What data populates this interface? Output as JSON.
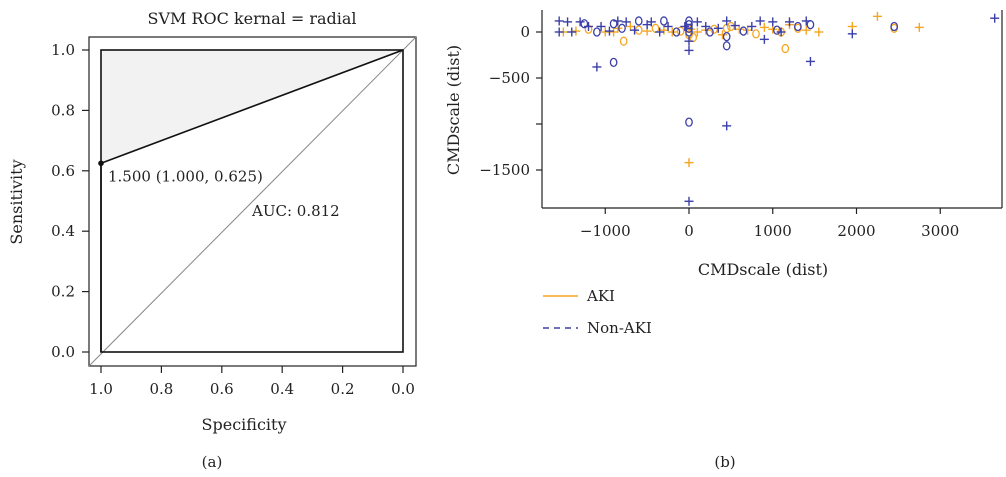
{
  "chart_data": [
    {
      "type": "line",
      "panel_label": "(a)",
      "title": "SVM ROC kernal = radial",
      "xlabel": "Specificity",
      "ylabel": "Sensitivity",
      "xlim": [
        1.0,
        0.0
      ],
      "ylim": [
        0.0,
        1.0
      ],
      "x_ticks": [
        1.0,
        0.8,
        0.6,
        0.4,
        0.2,
        0.0
      ],
      "x_tick_labels": [
        "1.0",
        "0.8",
        "0.6",
        "0.4",
        "0.2",
        "0.0"
      ],
      "y_ticks": [
        0.0,
        0.2,
        0.4,
        0.6,
        0.8,
        1.0
      ],
      "y_tick_labels": [
        "0.0",
        "0.2",
        "0.4",
        "0.6",
        "0.8",
        "1.0"
      ],
      "roc_curve": {
        "specificity": [
          1.0,
          1.0,
          0.0
        ],
        "sensitivity": [
          0.0,
          0.625,
          1.0
        ]
      },
      "threshold_point": {
        "specificity": 1.0,
        "sensitivity": 0.625,
        "label": "1.500 (1.000, 0.625)"
      },
      "auc_label": "AUC: 0.812",
      "colors": {
        "curve": "#111111",
        "diagonal": "#888888",
        "shade": "#f2f2f2"
      }
    },
    {
      "type": "scatter",
      "panel_label": "(b)",
      "xlabel": "CMDscale (dist)",
      "ylabel": "CMDscale (dist)",
      "xlim": [
        -1700,
        3800
      ],
      "ylim": [
        -1950,
        250
      ],
      "x_ticks": [
        -1000,
        0,
        1000,
        2000,
        3000
      ],
      "x_tick_labels": [
        "−1000",
        "0",
        "1000",
        "2000",
        "3000"
      ],
      "y_ticks": [
        0,
        -500,
        -1000,
        -1500
      ],
      "y_tick_labels": [
        "0",
        "−500",
        "",
        "−1500"
      ],
      "legend": [
        {
          "name": "AKI",
          "color": "#f5a623",
          "dash": "solid"
        },
        {
          "name": "Non-AKI",
          "color": "#3b3fa8",
          "dash": "dashed"
        }
      ],
      "legend_position": "bottom-left",
      "series": [
        {
          "name": "AKI",
          "color": "#f5a623",
          "points": [
            {
              "x": -1500,
              "y": 0,
              "m": "+"
            },
            {
              "x": -1350,
              "y": 10,
              "m": "+"
            },
            {
              "x": -1200,
              "y": 30,
              "m": "o"
            },
            {
              "x": -1000,
              "y": 0,
              "m": "+"
            },
            {
              "x": -850,
              "y": 40,
              "m": "+"
            },
            {
              "x": -780,
              "y": -100,
              "m": "o"
            },
            {
              "x": -700,
              "y": 60,
              "m": "+"
            },
            {
              "x": -600,
              "y": 20,
              "m": "o"
            },
            {
              "x": -500,
              "y": 10,
              "m": "+"
            },
            {
              "x": -400,
              "y": 40,
              "m": "o"
            },
            {
              "x": -300,
              "y": 20,
              "m": "+"
            },
            {
              "x": -200,
              "y": 0,
              "m": "+"
            },
            {
              "x": -100,
              "y": 10,
              "m": "o"
            },
            {
              "x": 0,
              "y": -30,
              "m": "o"
            },
            {
              "x": 20,
              "y": 30,
              "m": "+"
            },
            {
              "x": 50,
              "y": -60,
              "m": "o"
            },
            {
              "x": 100,
              "y": 0,
              "m": "+"
            },
            {
              "x": 200,
              "y": 20,
              "m": "+"
            },
            {
              "x": 300,
              "y": 30,
              "m": "o"
            },
            {
              "x": 400,
              "y": -30,
              "m": "+"
            },
            {
              "x": 500,
              "y": 60,
              "m": "o"
            },
            {
              "x": 600,
              "y": 30,
              "m": "+"
            },
            {
              "x": 700,
              "y": 20,
              "m": "+"
            },
            {
              "x": 800,
              "y": -20,
              "m": "o"
            },
            {
              "x": 900,
              "y": 50,
              "m": "+"
            },
            {
              "x": 1000,
              "y": 30,
              "m": "+"
            },
            {
              "x": 1100,
              "y": 0,
              "m": "o"
            },
            {
              "x": 1150,
              "y": -180,
              "m": "o"
            },
            {
              "x": 1200,
              "y": 80,
              "m": "+"
            },
            {
              "x": 1300,
              "y": 40,
              "m": "o"
            },
            {
              "x": 1400,
              "y": 20,
              "m": "+"
            },
            {
              "x": 1550,
              "y": 0,
              "m": "+"
            },
            {
              "x": 1950,
              "y": 60,
              "m": "+"
            },
            {
              "x": 2250,
              "y": 170,
              "m": "+"
            },
            {
              "x": 2450,
              "y": 40,
              "m": "o"
            },
            {
              "x": 2750,
              "y": 50,
              "m": "+"
            },
            {
              "x": 0,
              "y": -1420,
              "m": "+"
            },
            {
              "x": 450,
              "y": 40,
              "m": "o"
            },
            {
              "x": -900,
              "y": 0,
              "m": "+"
            }
          ]
        },
        {
          "name": "Non-AKI",
          "color": "#3b3fa8",
          "points": [
            {
              "x": -1550,
              "y": 120,
              "m": "+"
            },
            {
              "x": -1550,
              "y": 0,
              "m": "+"
            },
            {
              "x": -1450,
              "y": 110,
              "m": "+"
            },
            {
              "x": -1400,
              "y": 0,
              "m": "+"
            },
            {
              "x": -1300,
              "y": 110,
              "m": "+"
            },
            {
              "x": -1250,
              "y": 90,
              "m": "o"
            },
            {
              "x": -1200,
              "y": 60,
              "m": "+"
            },
            {
              "x": -1100,
              "y": 0,
              "m": "o"
            },
            {
              "x": -1050,
              "y": 60,
              "m": "+"
            },
            {
              "x": -950,
              "y": 10,
              "m": "+"
            },
            {
              "x": -900,
              "y": 90,
              "m": "o"
            },
            {
              "x": -850,
              "y": 120,
              "m": "+"
            },
            {
              "x": -800,
              "y": 40,
              "m": "o"
            },
            {
              "x": -750,
              "y": 110,
              "m": "+"
            },
            {
              "x": -650,
              "y": 20,
              "m": "+"
            },
            {
              "x": -600,
              "y": 120,
              "m": "o"
            },
            {
              "x": -500,
              "y": 80,
              "m": "+"
            },
            {
              "x": -450,
              "y": 110,
              "m": "+"
            },
            {
              "x": -350,
              "y": 0,
              "m": "+"
            },
            {
              "x": -300,
              "y": 120,
              "m": "o"
            },
            {
              "x": -250,
              "y": 60,
              "m": "+"
            },
            {
              "x": -150,
              "y": 0,
              "m": "o"
            },
            {
              "x": -50,
              "y": 60,
              "m": "+"
            },
            {
              "x": 0,
              "y": 120,
              "m": "o"
            },
            {
              "x": 0,
              "y": 80,
              "m": "o"
            },
            {
              "x": 0,
              "y": 40,
              "m": "o"
            },
            {
              "x": 0,
              "y": 0,
              "m": "o"
            },
            {
              "x": 0,
              "y": -100,
              "m": "+"
            },
            {
              "x": 0,
              "y": -200,
              "m": "+"
            },
            {
              "x": 100,
              "y": 110,
              "m": "+"
            },
            {
              "x": 200,
              "y": 60,
              "m": "+"
            },
            {
              "x": 250,
              "y": 0,
              "m": "o"
            },
            {
              "x": 350,
              "y": 40,
              "m": "+"
            },
            {
              "x": 450,
              "y": 120,
              "m": "+"
            },
            {
              "x": 450,
              "y": -50,
              "m": "o"
            },
            {
              "x": 450,
              "y": -150,
              "m": "o"
            },
            {
              "x": 550,
              "y": 70,
              "m": "+"
            },
            {
              "x": 650,
              "y": 10,
              "m": "o"
            },
            {
              "x": 750,
              "y": 60,
              "m": "+"
            },
            {
              "x": 850,
              "y": 120,
              "m": "+"
            },
            {
              "x": 900,
              "y": -80,
              "m": "+"
            },
            {
              "x": 1000,
              "y": 110,
              "m": "+"
            },
            {
              "x": 1050,
              "y": 20,
              "m": "o"
            },
            {
              "x": 1100,
              "y": 0,
              "m": "+"
            },
            {
              "x": 1200,
              "y": 110,
              "m": "+"
            },
            {
              "x": 1300,
              "y": 60,
              "m": "o"
            },
            {
              "x": 1400,
              "y": 120,
              "m": "+"
            },
            {
              "x": 1450,
              "y": 80,
              "m": "o"
            },
            {
              "x": 1450,
              "y": -320,
              "m": "+"
            },
            {
              "x": 1950,
              "y": -20,
              "m": "+"
            },
            {
              "x": 2450,
              "y": 60,
              "m": "o"
            },
            {
              "x": 3650,
              "y": 150,
              "m": "+"
            },
            {
              "x": -1100,
              "y": -380,
              "m": "+"
            },
            {
              "x": -900,
              "y": -330,
              "m": "o"
            },
            {
              "x": 0,
              "y": -980,
              "m": "o"
            },
            {
              "x": 450,
              "y": -1020,
              "m": "+"
            },
            {
              "x": 0,
              "y": -1840,
              "m": "+"
            }
          ]
        }
      ]
    }
  ]
}
